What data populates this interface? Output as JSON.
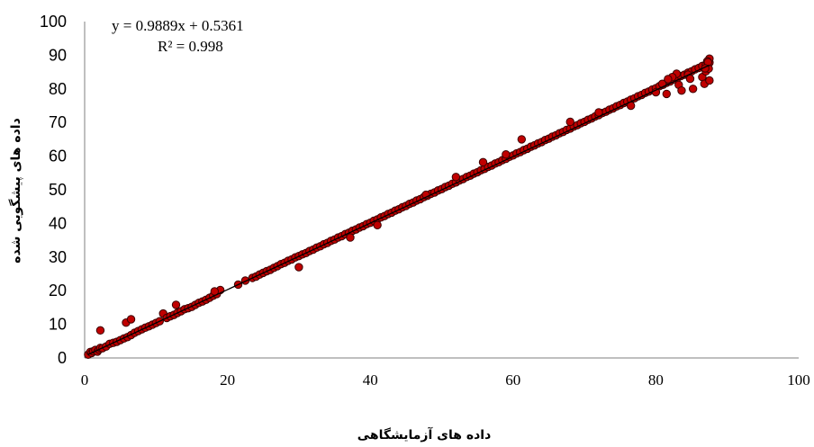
{
  "chart_data": {
    "type": "scatter",
    "xlabel": "داده های آزمایشگاهی",
    "ylabel": "داده های پیشگویی شده",
    "xlim": [
      0,
      100
    ],
    "ylim": [
      0,
      100
    ],
    "xticks": [
      0,
      20,
      40,
      60,
      80,
      100
    ],
    "yticks": [
      0,
      10,
      20,
      30,
      40,
      50,
      60,
      70,
      80,
      90,
      100
    ],
    "grid": false,
    "marker_color": "#c00000",
    "marker_edge": "#3a0000",
    "trendline": {
      "equation": "y = 0.9889x + 0.5361",
      "r_squared": "R² = 0.998",
      "slope": 0.9889,
      "intercept": 0.5361,
      "x_range": [
        0.5,
        87.5
      ]
    },
    "series": [
      {
        "x": [
          0.5,
          0.8,
          1.0,
          1.2,
          1.5,
          1.8,
          2.0,
          2.2,
          2.5,
          3.0,
          3.5,
          4.0,
          4.5,
          5.0,
          5.5,
          6.0,
          6.5,
          7.0,
          7.5,
          8.0,
          8.5,
          9.0,
          9.5,
          10.0,
          10.5,
          11.0,
          11.5,
          12.0,
          12.5,
          13.0,
          13.5,
          14.0,
          14.5,
          15.0,
          15.5,
          16.0,
          16.5,
          17.0,
          17.5,
          18.0,
          18.5,
          19.0,
          21.5,
          22.5,
          23.5,
          24.0,
          24.5,
          25.0,
          25.5,
          26.0,
          26.5,
          27.0,
          27.5,
          28.0,
          28.5,
          29.0,
          29.5,
          30.0,
          30.5,
          31.0,
          31.5,
          32.0,
          32.5,
          33.0,
          33.5,
          34.0,
          34.5,
          35.0,
          35.5,
          36.0,
          36.5,
          37.0,
          37.5,
          38.0,
          38.5,
          39.0,
          39.5,
          40.0,
          40.5,
          41.0,
          41.5,
          42.0,
          42.5,
          43.0,
          43.5,
          44.0,
          44.5,
          45.0,
          45.5,
          46.0,
          46.5,
          47.0,
          47.5,
          48.0,
          48.5,
          49.0,
          49.5,
          50.0,
          50.5,
          51.0,
          51.5,
          52.0,
          52.5,
          53.0,
          53.5,
          54.0,
          54.5,
          55.0,
          55.5,
          56.0,
          56.5,
          57.0,
          57.5,
          58.0,
          58.5,
          59.0,
          59.5,
          60.0,
          60.5,
          61.0,
          61.5,
          62.0,
          62.5,
          63.0,
          63.5,
          64.0,
          64.5,
          65.0,
          65.5,
          66.0,
          66.5,
          67.0,
          67.5,
          68.0,
          68.5,
          69.0,
          69.5,
          70.0,
          70.5,
          71.0,
          71.5,
          72.0,
          72.5,
          73.0,
          73.5,
          74.0,
          74.5,
          75.0,
          75.5,
          76.0,
          76.5,
          77.0,
          77.5,
          78.0,
          78.5,
          79.0,
          79.5,
          80.0,
          80.5,
          81.0,
          81.5,
          82.0,
          82.5,
          83.0,
          83.5,
          84.0,
          84.5,
          85.0,
          85.5,
          86.0,
          86.5,
          87.0,
          87.5,
          2.2,
          5.8,
          6.5,
          12.8,
          18.2,
          30.0,
          37.2,
          41.0,
          47.8,
          52.0,
          55.8,
          59.0,
          61.2,
          68.0,
          72.0,
          76.5,
          81.5,
          83.2,
          85.2,
          86.5,
          87.0,
          87.4,
          87.5,
          87.2,
          86.8,
          84.5,
          80.0,
          87.5,
          87.3,
          86.9,
          84.8,
          83.6,
          82.9,
          82.3,
          81.7,
          80.9
        ],
        "y": [
          1.0,
          1.8,
          1.5,
          2.0,
          2.4,
          1.9,
          2.5,
          3.0,
          2.9,
          3.4,
          4.2,
          4.5,
          4.8,
          5.3,
          5.8,
          6.2,
          6.8,
          7.5,
          8.0,
          8.5,
          9.0,
          9.4,
          9.9,
          10.4,
          10.9,
          13.2,
          11.9,
          12.4,
          12.8,
          13.4,
          13.9,
          14.5,
          14.8,
          15.2,
          15.8,
          16.4,
          16.8,
          17.3,
          17.9,
          18.5,
          19.0,
          20.2,
          21.8,
          23.0,
          23.8,
          24.2,
          24.8,
          25.3,
          25.8,
          26.2,
          26.8,
          27.3,
          27.9,
          28.3,
          28.9,
          29.3,
          29.9,
          30.3,
          30.8,
          31.2,
          31.8,
          32.2,
          32.8,
          33.2,
          33.8,
          34.2,
          34.8,
          35.2,
          35.8,
          36.2,
          36.8,
          37.2,
          37.8,
          38.2,
          38.8,
          39.2,
          39.8,
          40.2,
          40.8,
          41.2,
          41.8,
          42.2,
          42.8,
          43.2,
          43.8,
          44.2,
          44.8,
          45.2,
          45.8,
          46.2,
          46.8,
          47.2,
          47.8,
          48.2,
          48.8,
          49.2,
          49.8,
          50.2,
          50.8,
          51.2,
          51.8,
          52.2,
          52.8,
          53.2,
          53.8,
          54.2,
          54.8,
          55.2,
          55.8,
          56.2,
          56.8,
          57.2,
          57.8,
          58.2,
          58.8,
          59.2,
          59.8,
          60.2,
          60.8,
          61.2,
          61.8,
          62.2,
          62.8,
          63.2,
          63.8,
          64.2,
          64.8,
          65.2,
          65.8,
          66.2,
          66.8,
          67.2,
          67.8,
          68.2,
          68.8,
          69.2,
          69.8,
          70.2,
          70.8,
          71.2,
          71.8,
          72.2,
          72.8,
          73.2,
          73.8,
          74.2,
          74.8,
          75.2,
          75.8,
          76.2,
          76.8,
          77.2,
          77.8,
          78.2,
          78.8,
          79.2,
          79.8,
          80.2,
          80.8,
          81.2,
          81.8,
          82.2,
          82.8,
          83.2,
          83.8,
          84.2,
          84.8,
          85.2,
          85.8,
          86.2,
          86.8,
          87.2,
          87.8,
          8.2,
          10.5,
          11.5,
          15.8,
          19.8,
          27.0,
          35.8,
          39.5,
          48.5,
          53.8,
          58.2,
          60.5,
          65.0,
          70.2,
          73.0,
          75.0,
          78.5,
          81.2,
          80.0,
          83.5,
          85.2,
          86.0,
          89.0,
          88.2,
          81.5,
          84.2,
          79.0,
          82.5,
          87.9,
          86.1,
          83.0,
          79.5,
          84.5,
          83.5,
          82.9,
          81.5
        ]
      }
    ]
  }
}
